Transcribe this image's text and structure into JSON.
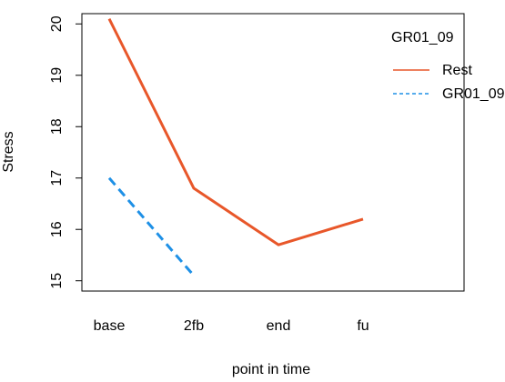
{
  "chart_data": {
    "type": "line",
    "title": "",
    "xlabel": "point in time",
    "ylabel": "Stress",
    "categories": [
      "base",
      "2fb",
      "end",
      "fu"
    ],
    "ylim": [
      14.8,
      20.2
    ],
    "yticks": [
      15,
      16,
      17,
      18,
      19,
      20
    ],
    "grid": false,
    "legend": {
      "title": "GR01_09",
      "placement": "top-right",
      "entries": [
        "Rest",
        "GR01_09"
      ]
    },
    "series": [
      {
        "name": "Rest",
        "values": [
          20.1,
          16.8,
          15.7,
          16.2
        ],
        "color": "#E8572A",
        "dash": "solid"
      },
      {
        "name": "GR01_09",
        "values": [
          17.0,
          15.1,
          null,
          null
        ],
        "color": "#1E90E6",
        "dash": "dashed"
      }
    ]
  }
}
